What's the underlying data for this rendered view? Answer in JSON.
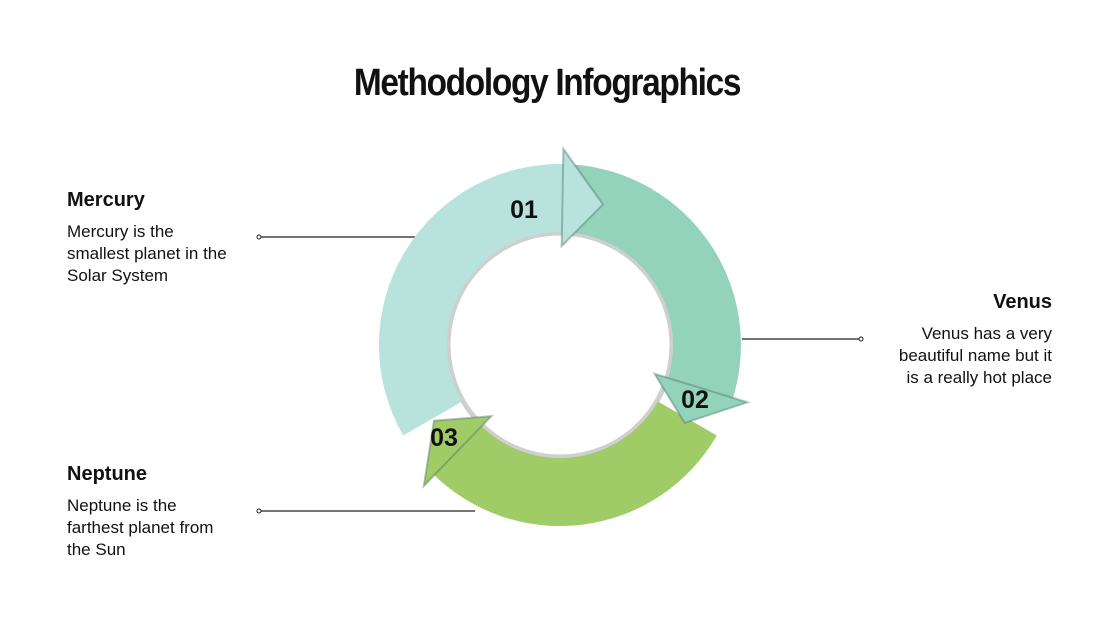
{
  "title": "Methodology Infographics",
  "steps": [
    {
      "number": "01",
      "heading": "Mercury",
      "text": [
        "Mercury is the",
        "smallest planet in the",
        "Solar System"
      ],
      "color": "#b8e2dc"
    },
    {
      "number": "02",
      "heading": "Venus",
      "text": [
        "Venus has a very",
        "beautiful name but it",
        "is a really hot place"
      ],
      "color": "#93d3bc"
    },
    {
      "number": "03",
      "heading": "Neptune",
      "text": [
        "Neptune is the",
        "farthest planet from",
        "the Sun"
      ],
      "color": "#a0cc67"
    }
  ]
}
